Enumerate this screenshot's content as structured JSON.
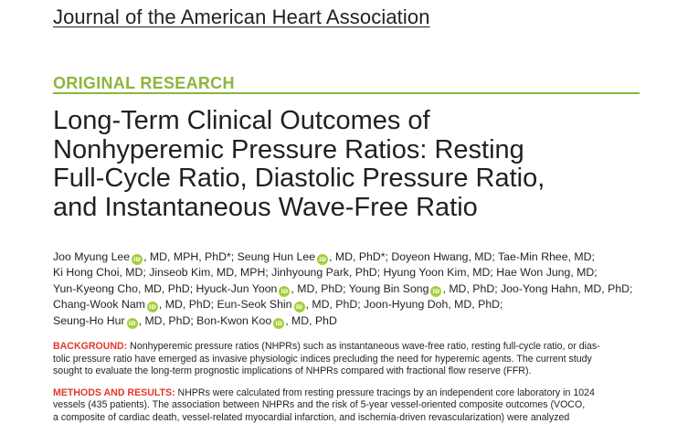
{
  "journal": {
    "name": "Journal of the American Heart Association"
  },
  "section": {
    "label": "ORIGINAL RESEARCH",
    "accent_color": "#8cb63c"
  },
  "article": {
    "title_lines": [
      "Long-Term Clinical Outcomes of",
      "Nonhyperemic Pressure Ratios: Resting",
      "Full-Cycle Ratio, Diastolic Pressure Ratio,",
      "and Instantaneous Wave-Free Ratio"
    ]
  },
  "orcid_icon": {
    "label": "iD",
    "color": "#a6ce39"
  },
  "authors": {
    "lines": [
      {
        "a": "Joo Myung Lee",
        "b": ", MD, MPH, PhD*; Seung Hun Lee",
        "c": ", MD, PhD*; Doyeon Hwang, MD; Tae-Min Rhee, MD;"
      },
      {
        "a": "Ki Hong Choi, MD; Jinseob Kim, MD, MPH; Jinhyoung Park, PhD; Hyung Yoon Kim, MD; Hae Won Jung, MD;"
      },
      {
        "a": "Yun-Kyeong Cho, MD, PhD; Hyuck-Jun Yoon",
        "b": ", MD, PhD; Young Bin Song",
        "c": ", MD, PhD; Joo-Yong Hahn, MD, PhD;"
      },
      {
        "a": "Chang-Wook Nam",
        "b": ", MD, PhD; Eun-Seok Shin",
        "c": ", MD, PhD; Joon-Hyung Doh, MD, PhD;"
      },
      {
        "a": "Seung-Ho Hur",
        "b": ", MD, PhD; Bon-Kwon Koo",
        "c": ", MD, PhD"
      }
    ]
  },
  "abstract": {
    "heading_color": "#e2382b",
    "background": {
      "heading": "BACKGROUND:",
      "lines": [
        " Nonhyperemic pressure ratios (NHPRs) such as instantaneous wave-free ratio, resting full-cycle ratio, or dias-",
        "tolic pressure ratio have emerged as invasive physiologic indices precluding the need for hyperemic agents. The current study",
        "sought to evaluate the long-term prognostic implications of NHPRs compared with fractional flow reserve (FFR)."
      ]
    },
    "methods": {
      "heading": "METHODS AND RESULTS:",
      "lines": [
        " NHPRs were calculated from resting pressure tracings by an independent core laboratory in 1024",
        "vessels (435 patients). The association between NHPRs and the risk of 5-year vessel-oriented composite outcomes (VOCO,",
        "a composite of cardiac death, vessel-related myocardial infarction, and ischemia-driven revascularization) were analyzed"
      ]
    }
  }
}
